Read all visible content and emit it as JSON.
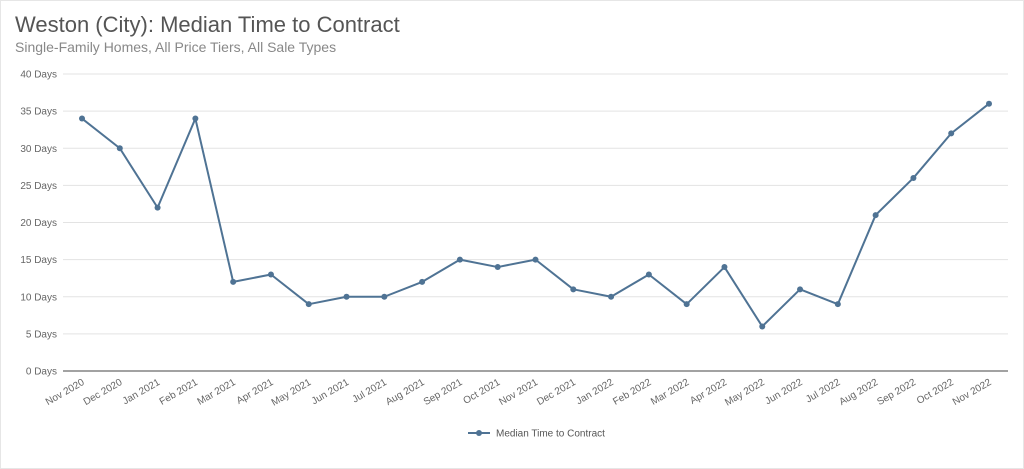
{
  "chart_data": {
    "type": "line",
    "title": "Weston (City): Median Time to Contract",
    "subtitle": "Single-Family Homes, All Price Tiers, All Sale Types",
    "categories": [
      "Nov 2020",
      "Dec 2020",
      "Jan 2021",
      "Feb 2021",
      "Mar 2021",
      "Apr 2021",
      "May 2021",
      "Jun 2021",
      "Jul 2021",
      "Aug 2021",
      "Sep 2021",
      "Oct 2021",
      "Nov 2021",
      "Dec 2021",
      "Jan 2022",
      "Feb 2022",
      "Mar 2022",
      "Apr 2022",
      "May 2022",
      "Jun 2022",
      "Jul 2022",
      "Aug 2022",
      "Sep 2022",
      "Oct 2022",
      "Nov 2022"
    ],
    "series": [
      {
        "name": "Median Time to Contract",
        "values": [
          34,
          30,
          22,
          34,
          12,
          13,
          9,
          10,
          10,
          12,
          15,
          14,
          15,
          11,
          10,
          13,
          9,
          14,
          6,
          11,
          9,
          21,
          26,
          32,
          36
        ]
      }
    ],
    "ylim": [
      0,
      40
    ],
    "yticks": [
      "0 Days",
      "5 Days",
      "10 Days",
      "15 Days",
      "20 Days",
      "25 Days",
      "30 Days",
      "35 Days",
      "40 Days"
    ],
    "xlabel": "",
    "ylabel": "",
    "grid": true,
    "legend_position": "bottom",
    "color": "#4f7394"
  }
}
